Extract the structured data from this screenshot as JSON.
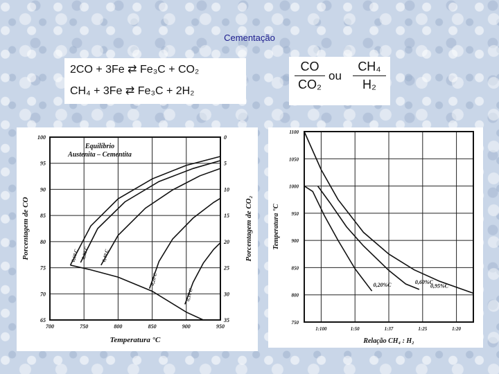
{
  "slide": {
    "title": "Cementação"
  },
  "equations": {
    "line1": {
      "left": "2CO  +  3Fe",
      "arrow": "⇄",
      "right": "Fe₃C  +  CO₂"
    },
    "line2": {
      "left": "CH₄  +  3Fe",
      "arrow": "⇄",
      "right": "Fe₃C  +  2H₂"
    }
  },
  "ratios": {
    "a_num": "CO",
    "a_den": "CO₂",
    "connector": "ou",
    "b_num": "CH₄",
    "b_den": "H₂"
  },
  "chart_data": [
    {
      "type": "line",
      "title": "Equilíbrio Austenita – Cementita",
      "xlabel": "Temperatura °C",
      "ylabel": "Porcentagem de CO",
      "y2label": "Porcentagem de CO₂",
      "xlim": [
        700,
        950
      ],
      "ylim": [
        65,
        100
      ],
      "y2lim": [
        0,
        35
      ],
      "xticks": [
        "700",
        "750",
        "800",
        "850",
        "900",
        "950"
      ],
      "yticks": [
        "100",
        "95",
        "90",
        "85",
        "80",
        "75",
        "70",
        "65"
      ],
      "y2ticks": [
        "0",
        "5",
        "10",
        "15",
        "20",
        "25",
        "30",
        "35"
      ],
      "series": [
        {
          "name": "0,60 C",
          "x": [
            730,
            760,
            800,
            850,
            900,
            950
          ],
          "y": [
            75.5,
            83.0,
            88.2,
            92.0,
            94.6,
            96.3
          ]
        },
        {
          "name": "0,80 C",
          "x": [
            745,
            770,
            810,
            860,
            910,
            950
          ],
          "y": [
            76.0,
            82.5,
            87.6,
            91.5,
            94.0,
            95.5
          ]
        },
        {
          "name": "0,40 C",
          "x": [
            775,
            800,
            840,
            880,
            920,
            950
          ],
          "y": [
            75.5,
            81.2,
            86.4,
            89.9,
            92.6,
            94.0
          ]
        },
        {
          "name": "0,20 C",
          "x": [
            846,
            860,
            880,
            910,
            940,
            950
          ],
          "y": [
            71.0,
            76.2,
            80.5,
            84.5,
            87.5,
            88.3
          ]
        },
        {
          "name": "0,10 C",
          "x": [
            898,
            910,
            925,
            940,
            950
          ],
          "y": [
            68.0,
            72.2,
            75.9,
            78.5,
            79.8
          ]
        }
      ],
      "boundary": {
        "x": [
          730,
          760,
          800,
          850,
          900,
          925
        ],
        "y": [
          75.5,
          74.6,
          73.2,
          70.5,
          66.5,
          65.0
        ]
      }
    },
    {
      "type": "line",
      "xlabel": "Relação CH₄ : H₂",
      "ylabel": "Temperatura °C",
      "ylim": [
        750,
        1100
      ],
      "xticks": [
        "1:100",
        "1:50",
        "1:37",
        "1:25",
        "1:20"
      ],
      "yticks": [
        "1100",
        "1050",
        "1000",
        "950",
        "900",
        "850",
        "800",
        "750"
      ],
      "series": [
        {
          "name": "0,95%C",
          "x_pos": [
            0.0,
            0.1,
            0.2,
            0.35,
            0.5,
            0.65,
            0.8,
            1.0
          ],
          "y": [
            1100,
            1030,
            975,
            915,
            875,
            846,
            825,
            803
          ]
        },
        {
          "name": "0,20%C",
          "x_pos": [
            0.0,
            0.05,
            0.12,
            0.2,
            0.3,
            0.4
          ],
          "y": [
            1000,
            990,
            945,
            900,
            848,
            807
          ]
        },
        {
          "name": "0,60%C",
          "x_pos": [
            0.08,
            0.15,
            0.25,
            0.35,
            0.5,
            0.6,
            0.68
          ],
          "y": [
            1000,
            970,
            925,
            890,
            845,
            820,
            810
          ]
        }
      ]
    }
  ]
}
